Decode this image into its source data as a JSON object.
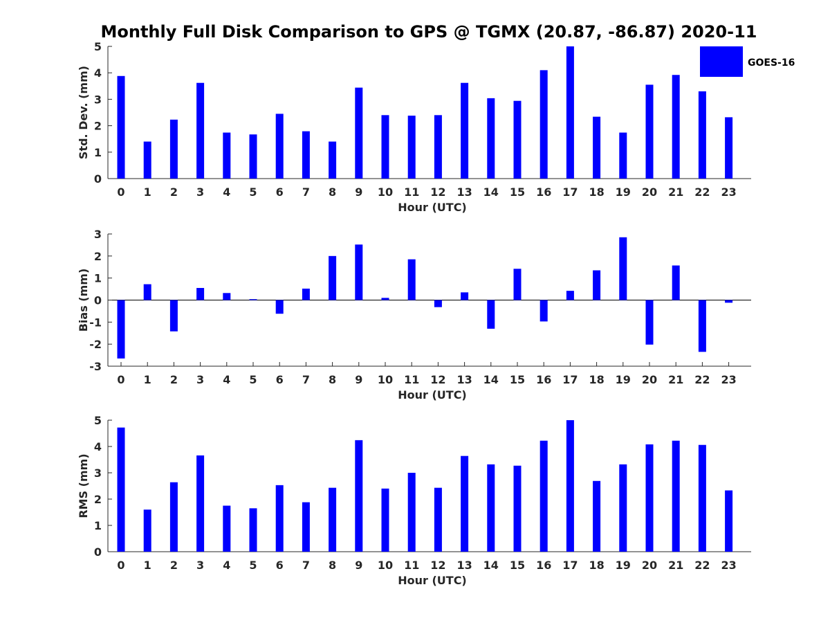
{
  "title": "Monthly Full Disk Comparison to GPS @ TGMX (20.87, -86.87) 2020-11",
  "legend": {
    "label": "GOES-16",
    "color": "#0000ff"
  },
  "bar_color": "#0000ff",
  "chart_data": [
    {
      "type": "bar",
      "name": "std-dev",
      "xlabel": "Hour (UTC)",
      "ylabel": "Std. Dev. (mm)",
      "ylim": [
        0,
        5
      ],
      "yticks": [
        0,
        1,
        2,
        3,
        4,
        5
      ],
      "categories": [
        "0",
        "1",
        "2",
        "3",
        "4",
        "5",
        "6",
        "7",
        "8",
        "9",
        "10",
        "11",
        "12",
        "13",
        "14",
        "15",
        "16",
        "17",
        "18",
        "19",
        "20",
        "21",
        "22",
        "23"
      ],
      "series": [
        {
          "name": "GOES-16",
          "values": [
            3.88,
            1.4,
            2.23,
            3.62,
            1.74,
            1.67,
            2.45,
            1.79,
            1.4,
            3.44,
            2.4,
            2.38,
            2.4,
            3.62,
            3.04,
            2.94,
            4.1,
            5.0,
            2.34,
            1.74,
            3.55,
            3.92,
            3.3,
            2.32
          ]
        }
      ]
    },
    {
      "type": "bar",
      "name": "bias",
      "xlabel": "Hour (UTC)",
      "ylabel": "Bias (mm)",
      "ylim": [
        -3,
        3
      ],
      "yticks": [
        -3,
        -2,
        -1,
        0,
        1,
        2,
        3
      ],
      "categories": [
        "0",
        "1",
        "2",
        "3",
        "4",
        "5",
        "6",
        "7",
        "8",
        "9",
        "10",
        "11",
        "12",
        "13",
        "14",
        "15",
        "16",
        "17",
        "18",
        "19",
        "20",
        "21",
        "22",
        "23"
      ],
      "series": [
        {
          "name": "GOES-16",
          "values": [
            -2.65,
            0.72,
            -1.42,
            0.55,
            0.32,
            0.04,
            -0.62,
            0.52,
            2.0,
            2.52,
            0.1,
            1.85,
            -0.32,
            0.35,
            -1.3,
            1.42,
            -0.97,
            0.42,
            1.35,
            2.85,
            -2.02,
            1.57,
            -2.35,
            -0.12
          ]
        }
      ]
    },
    {
      "type": "bar",
      "name": "rms",
      "xlabel": "Hour (UTC)",
      "ylabel": "RMS (mm)",
      "ylim": [
        0,
        5
      ],
      "yticks": [
        0,
        1,
        2,
        3,
        4,
        5
      ],
      "categories": [
        "0",
        "1",
        "2",
        "3",
        "4",
        "5",
        "6",
        "7",
        "8",
        "9",
        "10",
        "11",
        "12",
        "13",
        "14",
        "15",
        "16",
        "17",
        "18",
        "19",
        "20",
        "21",
        "22",
        "23"
      ],
      "series": [
        {
          "name": "GOES-16",
          "values": [
            4.72,
            1.6,
            2.64,
            3.66,
            1.75,
            1.65,
            2.53,
            1.88,
            2.43,
            4.24,
            2.4,
            3.0,
            2.43,
            3.64,
            3.32,
            3.27,
            4.22,
            5.0,
            2.69,
            3.32,
            4.08,
            4.22,
            4.06,
            2.33
          ]
        }
      ]
    }
  ]
}
